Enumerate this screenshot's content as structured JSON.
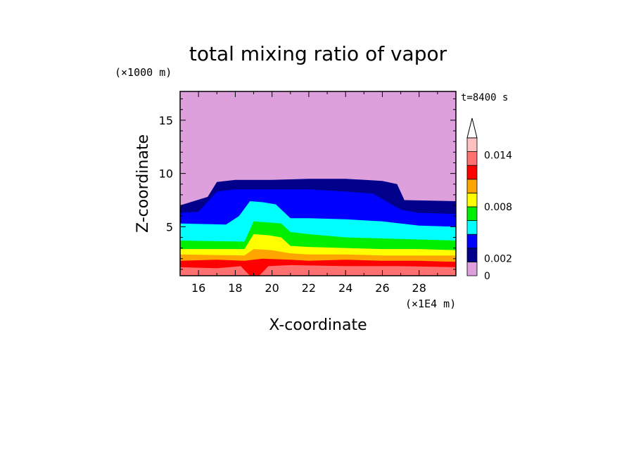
{
  "chart_data": {
    "type": "contour",
    "title": "total mixing ratio of vapor",
    "xlabel": "X-coordinate",
    "ylabel": "Z-coordinate",
    "x_unit": "(×1E4 m)",
    "y_unit": "(×1000 m)",
    "time_label": "t=8400 s",
    "xlim": [
      15,
      30
    ],
    "ylim": [
      0.4,
      17.7
    ],
    "x_ticks": [
      16,
      18,
      20,
      22,
      24,
      26,
      28
    ],
    "y_ticks": [
      5,
      10,
      15
    ],
    "x_tick_labels": [
      "16",
      "18",
      "20",
      "22",
      "24",
      "26",
      "28"
    ],
    "y_tick_labels": [
      "5",
      "10",
      "15"
    ],
    "colorbar": {
      "levels": [
        0,
        0.001,
        0.002,
        0.004,
        0.006,
        0.008,
        0.01,
        0.012,
        0.014,
        0.016
      ],
      "labels": [
        "0",
        "0.002",
        "0.008",
        "0.014"
      ],
      "label_values": [
        0,
        0.002,
        0.008,
        0.014
      ],
      "colors": [
        "#dda0dd",
        "#00008b",
        "#0000ff",
        "#00ffff",
        "#00ee00",
        "#ffff00",
        "#ffa500",
        "#ff0000",
        "#ff7070",
        "#ffc0c0"
      ],
      "extend": "max"
    },
    "bands": [
      {
        "level": 0.001,
        "color": "#00008b",
        "x": [
          15.0,
          16.5,
          17.0,
          18.0,
          20.0,
          22.0,
          24.0,
          26.0,
          26.8,
          27.2,
          30.0
        ],
        "top": [
          7.0,
          7.8,
          9.2,
          9.4,
          9.4,
          9.5,
          9.5,
          9.3,
          9.0,
          7.5,
          7.4
        ]
      },
      {
        "level": 0.002,
        "color": "#0000ff",
        "x": [
          15.0,
          16.0,
          17.0,
          18.0,
          20.0,
          22.0,
          24.0,
          25.5,
          27.0,
          28.0,
          30.0
        ],
        "top": [
          6.3,
          6.4,
          8.3,
          8.5,
          8.5,
          8.5,
          8.3,
          8.1,
          6.6,
          6.3,
          6.2
        ]
      },
      {
        "level": 0.004,
        "color": "#00ffff",
        "x": [
          15.0,
          17.5,
          18.2,
          18.8,
          19.5,
          20.2,
          21.0,
          22.0,
          24.0,
          26.0,
          28.0,
          30.0
        ],
        "top": [
          5.3,
          5.2,
          6.0,
          7.4,
          7.3,
          7.1,
          5.8,
          5.8,
          5.7,
          5.5,
          5.1,
          5.0
        ]
      },
      {
        "level": 0.006,
        "color": "#00ee00",
        "x": [
          15.0,
          18.5,
          19.0,
          19.8,
          20.5,
          21.0,
          22.0,
          24.0,
          26.0,
          28.0,
          30.0
        ],
        "top": [
          3.7,
          3.6,
          5.5,
          5.4,
          5.3,
          4.5,
          4.3,
          4.0,
          3.9,
          3.8,
          3.7
        ]
      },
      {
        "level": 0.008,
        "color": "#ffff00",
        "x": [
          15.0,
          18.5,
          19.0,
          19.8,
          20.5,
          21.0,
          22.0,
          24.0,
          26.0,
          28.0,
          30.0
        ],
        "top": [
          2.9,
          2.9,
          4.3,
          4.2,
          4.0,
          3.2,
          3.1,
          3.0,
          2.9,
          2.9,
          2.8
        ]
      },
      {
        "level": 0.01,
        "color": "#ffa500",
        "x": [
          15.0,
          18.5,
          19.0,
          20.0,
          21.0,
          22.0,
          24.0,
          26.0,
          28.0,
          30.0
        ],
        "top": [
          2.4,
          2.3,
          2.9,
          2.8,
          2.5,
          2.4,
          2.4,
          2.3,
          2.3,
          2.3
        ]
      },
      {
        "level": 0.012,
        "color": "#ff0000",
        "x": [
          15.0,
          17.0,
          18.5,
          19.5,
          21.0,
          22.0,
          24.0,
          26.0,
          28.0,
          30.0
        ],
        "top": [
          1.8,
          1.9,
          1.8,
          2.0,
          1.9,
          1.8,
          1.9,
          1.8,
          1.8,
          1.7
        ]
      },
      {
        "level": 0.014,
        "color": "#ff7070",
        "x": [
          15.0,
          17.0,
          18.3,
          18.8,
          19.3,
          19.8,
          21.0,
          24.0,
          27.0,
          30.0
        ],
        "top": [
          1.2,
          1.1,
          1.3,
          0.4,
          0.4,
          1.3,
          1.4,
          1.3,
          1.3,
          1.2
        ]
      }
    ],
    "background_color": "#dda0dd"
  }
}
